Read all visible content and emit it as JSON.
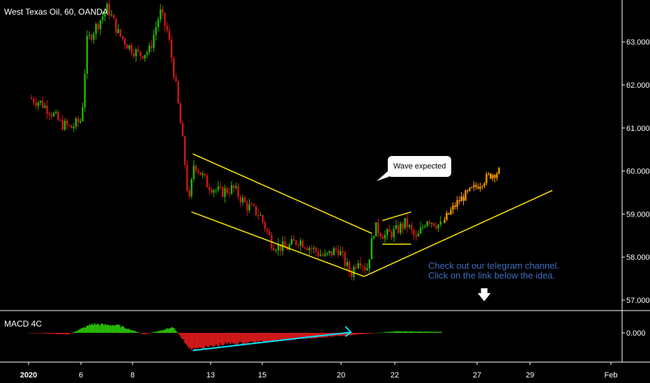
{
  "chart_title": "West Texas Oil, 60, OANDA",
  "macd_label": "MACD 4C",
  "annotation_bubble": "Wave expected",
  "promo_lines": [
    "Check out our telegram channel.",
    "Click on the link below the idea."
  ],
  "arrow_icon": "down-arrow-icon",
  "colors": {
    "background": "#000000",
    "up": "#26b800",
    "down": "#d01818",
    "projection": "#ff9800",
    "trendline": "#ffeb00",
    "divergence": "#00e5ff",
    "axis": "#ffffff",
    "promo": "#3f6dbf"
  },
  "chart_data": [
    {
      "type": "candlestick",
      "title": "West Texas Oil, 60, OANDA",
      "ylim": [
        56.8,
        64.0
      ],
      "yticks": [
        "63.000",
        "62.000",
        "61.000",
        "60.000",
        "59.000",
        "58.000",
        "57.000"
      ],
      "ytick_values": [
        63,
        62,
        61,
        60,
        59,
        58,
        57
      ],
      "xticks": [
        "2020",
        "6",
        "8",
        "13",
        "15",
        "20",
        "22",
        "27",
        "29",
        "Feb"
      ],
      "path": [
        {
          "day": 1.0,
          "price": 61.7
        },
        {
          "day": 1.4,
          "price": 61.6
        },
        {
          "day": 1.8,
          "price": 61.4
        },
        {
          "day": 2.2,
          "price": 61.1
        },
        {
          "day": 2.6,
          "price": 61.0
        },
        {
          "day": 3.0,
          "price": 61.2
        },
        {
          "day": 3.2,
          "price": 63.0
        },
        {
          "day": 3.6,
          "price": 63.4
        },
        {
          "day": 4.0,
          "price": 63.8
        },
        {
          "day": 4.4,
          "price": 63.2
        },
        {
          "day": 4.8,
          "price": 62.9
        },
        {
          "day": 5.2,
          "price": 62.7
        },
        {
          "day": 5.6,
          "price": 62.8
        },
        {
          "day": 6.0,
          "price": 63.7
        },
        {
          "day": 6.3,
          "price": 63.2
        },
        {
          "day": 6.6,
          "price": 62.0
        },
        {
          "day": 6.9,
          "price": 60.5
        },
        {
          "day": 7.1,
          "price": 59.2
        },
        {
          "day": 7.3,
          "price": 60.2
        },
        {
          "day": 7.8,
          "price": 59.7
        },
        {
          "day": 8.3,
          "price": 59.5
        },
        {
          "day": 8.8,
          "price": 59.6
        },
        {
          "day": 9.3,
          "price": 59.2
        },
        {
          "day": 9.8,
          "price": 59.0
        },
        {
          "day": 10.3,
          "price": 58.3
        },
        {
          "day": 10.8,
          "price": 58.2
        },
        {
          "day": 11.3,
          "price": 58.4
        },
        {
          "day": 11.8,
          "price": 58.2
        },
        {
          "day": 12.3,
          "price": 58.0
        },
        {
          "day": 12.8,
          "price": 58.2
        },
        {
          "day": 13.3,
          "price": 57.6
        },
        {
          "day": 13.6,
          "price": 58.0
        },
        {
          "day": 13.9,
          "price": 57.7
        },
        {
          "day": 14.2,
          "price": 58.7
        },
        {
          "day": 14.6,
          "price": 58.5
        },
        {
          "day": 15.0,
          "price": 58.6
        },
        {
          "day": 15.4,
          "price": 58.8
        },
        {
          "day": 15.8,
          "price": 58.4
        },
        {
          "day": 16.2,
          "price": 58.9
        },
        {
          "day": 16.5,
          "price": 58.8
        },
        {
          "day": 16.8,
          "price": 58.7
        }
      ],
      "projection": [
        {
          "day": 16.8,
          "price": 58.8
        },
        {
          "day": 17.4,
          "price": 59.3
        },
        {
          "day": 18.0,
          "price": 59.6
        },
        {
          "day": 18.6,
          "price": 59.9
        },
        {
          "day": 19.0,
          "price": 60.0
        }
      ],
      "trendlines": [
        {
          "from": {
            "day": 7.25,
            "price": 60.4
          },
          "to": {
            "day": 14.1,
            "price": 58.55
          }
        },
        {
          "from": {
            "day": 7.2,
            "price": 59.05
          },
          "to": {
            "day": 13.8,
            "price": 57.55
          }
        },
        {
          "from": {
            "day": 13.8,
            "price": 57.55
          },
          "to": {
            "day": 21.0,
            "price": 59.55
          }
        },
        {
          "from": {
            "day": 14.5,
            "price": 58.85
          },
          "to": {
            "day": 15.6,
            "price": 59.05
          }
        },
        {
          "from": {
            "day": 14.5,
            "price": 58.3
          },
          "to": {
            "day": 15.6,
            "price": 58.3
          }
        }
      ]
    },
    {
      "type": "histogram",
      "title": "MACD 4C",
      "yticks": [
        "0.000"
      ],
      "ytick_values": [
        0
      ],
      "ylim": [
        -0.6,
        0.4
      ],
      "values_by_day": [
        {
          "day": 1.0,
          "value": 0.0
        },
        {
          "day": 2.5,
          "value": -0.05
        },
        {
          "day": 3.4,
          "value": 0.28
        },
        {
          "day": 4.4,
          "value": 0.24
        },
        {
          "day": 5.4,
          "value": -0.05
        },
        {
          "day": 6.5,
          "value": 0.18
        },
        {
          "day": 7.2,
          "value": -0.55
        },
        {
          "day": 8.5,
          "value": -0.35
        },
        {
          "day": 10.5,
          "value": -0.25
        },
        {
          "day": 12.5,
          "value": -0.12
        },
        {
          "day": 14.0,
          "value": -0.02
        },
        {
          "day": 15.0,
          "value": 0.05
        },
        {
          "day": 16.8,
          "value": 0.03
        }
      ],
      "divergence_line": {
        "from": {
          "day": 7.25,
          "value": -0.56
        },
        "to": {
          "day": 13.3,
          "value": 0.02
        }
      }
    }
  ]
}
